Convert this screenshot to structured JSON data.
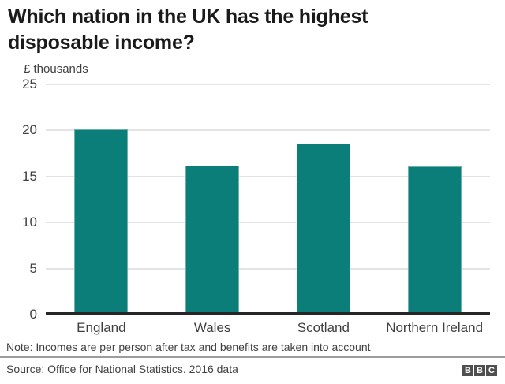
{
  "page": {
    "title": "Which nation in the UK has the highest disposable income?",
    "unit_label": "£ thousands",
    "note": "Note: Incomes are per person after tax and benefits are taken into account",
    "source": "Source: Office for National Statistics. 2016 data",
    "logo_letters": [
      "B",
      "B",
      "C"
    ]
  },
  "colors": {
    "bar": "#0b7e79",
    "bar_edge": "#6fb0ac",
    "gridline": "#e4e4e4",
    "axis_line": "#262626",
    "title_text": "#1a1a1a",
    "label_text": "#404040",
    "divider": "#9c9c9c",
    "logo_background": "#4f4f4f"
  },
  "chart_data": {
    "type": "bar",
    "categories": [
      "England",
      "Wales",
      "Scotland",
      "Northern Ireland"
    ],
    "values": [
      19.9,
      15.9,
      18.3,
      15.8
    ],
    "title": "Which nation in the UK has the highest disposable income?",
    "xlabel": "",
    "ylabel": "£ thousands",
    "ylim": [
      0,
      25
    ],
    "yticks": [
      0,
      5,
      10,
      15,
      20,
      25
    ],
    "grid": true,
    "legend": "none",
    "bar_color": "#0b7e79"
  }
}
